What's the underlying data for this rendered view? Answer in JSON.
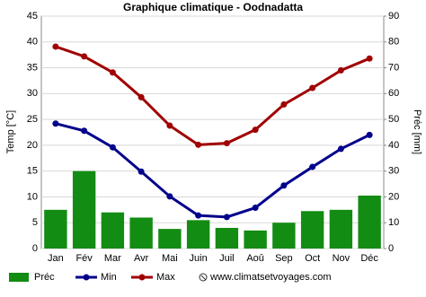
{
  "chart_data": {
    "type": "combo",
    "title": "Graphique climatique - Oodnadatta",
    "ylabel": "Temp [°C]",
    "y2label": "Préc [mm]",
    "source": "www.climatsetvoyages.com",
    "categories": [
      "Jan",
      "Fév",
      "Mar",
      "Avr",
      "Mai",
      "Juin",
      "Juil",
      "Aoû",
      "Sep",
      "Oct",
      "Nov",
      "Déc"
    ],
    "series": [
      {
        "name": "Préc",
        "type": "bar",
        "axis": "y2",
        "color": "#138c13",
        "values": [
          15,
          30,
          14,
          12,
          7.6,
          11,
          8,
          7,
          10,
          14.5,
          15,
          20.5
        ]
      },
      {
        "name": "Min",
        "type": "line",
        "color": "#00008b",
        "values": [
          24.2,
          22.8,
          19.6,
          14.9,
          10.1,
          6.4,
          6.1,
          7.9,
          12.2,
          15.8,
          19.3,
          22.0
        ]
      },
      {
        "name": "Max",
        "type": "line",
        "color": "#a00000",
        "values": [
          39.1,
          37.2,
          34.1,
          29.3,
          23.8,
          20.1,
          20.4,
          23.0,
          27.9,
          31.1,
          34.5,
          36.8
        ]
      }
    ],
    "ylim": [
      0,
      45
    ],
    "yticks": [
      0,
      5,
      10,
      15,
      20,
      25,
      30,
      35,
      40,
      45
    ],
    "y2lim": [
      0,
      90
    ],
    "y2ticks": [
      0,
      10,
      20,
      30,
      40,
      50,
      60,
      70,
      80,
      90
    ],
    "grid": true
  }
}
